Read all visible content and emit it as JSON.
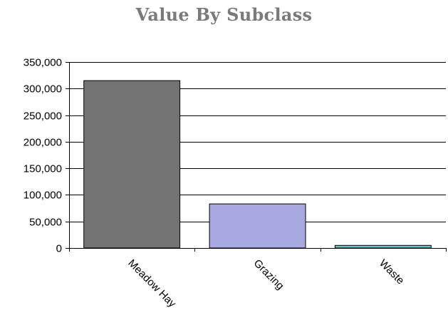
{
  "chart_data": {
    "type": "bar",
    "title": "Value By Subclass",
    "xlabel": "",
    "ylabel": "",
    "categories": [
      "Meadow Hay",
      "Grazing",
      "Waste"
    ],
    "values": [
      315000,
      83000,
      5000
    ],
    "ylim": [
      0,
      350000
    ],
    "yticks": [
      0,
      50000,
      100000,
      150000,
      200000,
      250000,
      300000,
      350000
    ],
    "ytick_labels": [
      "0",
      "50,000",
      "100,000",
      "150,000",
      "200,000",
      "250,000",
      "300,000",
      "350,000"
    ],
    "bar_colors": [
      "#737373",
      "#a7a9e0",
      "#5fc6c3"
    ],
    "grid": true,
    "legend": "none"
  }
}
